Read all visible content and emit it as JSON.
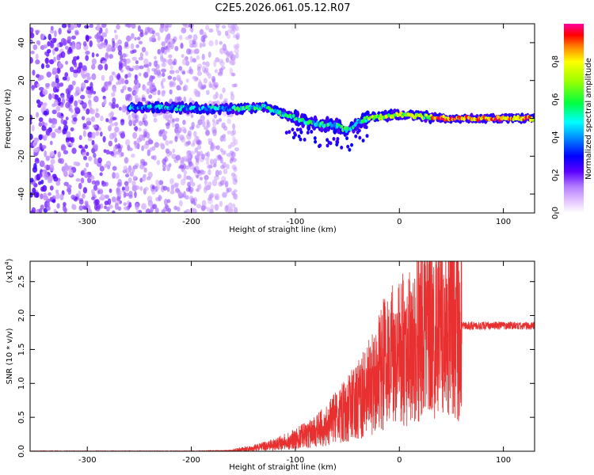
{
  "title": "C2E5.2026.061.05.12.R07",
  "chart_data": [
    {
      "type": "heatmap",
      "xlabel": "Height of straight line (km)",
      "ylabel": "Frequency (Hz)",
      "xlim": [
        -355,
        130
      ],
      "ylim": [
        -50,
        50
      ],
      "xticks": [
        -300,
        -200,
        -100,
        0,
        100
      ],
      "yticks": [
        -40,
        -20,
        0,
        20,
        40
      ],
      "colorbar": {
        "label": "Normalized spectral amplitude",
        "range": [
          0,
          1
        ],
        "ticks": [
          0.0,
          0.2,
          0.4,
          0.6,
          0.8
        ]
      },
      "ridge": {
        "x": [
          -260,
          -200,
          -160,
          -130,
          -110,
          -90,
          -75,
          -60,
          -50,
          -40,
          -30,
          -15,
          0,
          20,
          50,
          80,
          130
        ],
        "freq": [
          6,
          5.5,
          5,
          6,
          2,
          -2,
          -3,
          -4,
          -6,
          -2,
          0,
          1,
          2,
          1,
          0,
          0,
          0
        ]
      },
      "noise_region_x": [
        -355,
        -155
      ]
    },
    {
      "type": "line",
      "xlabel": "Height of straight line (km)",
      "ylabel": "SNR (10 * v/v)",
      "yscale_label": "(x10^4)",
      "xlim": [
        -355,
        130
      ],
      "ylim": [
        0,
        2.8
      ],
      "xticks": [
        -300,
        -200,
        -100,
        0,
        100
      ],
      "yticks": [
        0.0,
        0.5,
        1.0,
        1.5,
        2.0,
        2.5
      ],
      "series": [
        {
          "name": "SNR",
          "color": "#e83030",
          "x": [
            -355,
            -300,
            -250,
            -200,
            -160,
            -140,
            -120,
            -100,
            -80,
            -60,
            -40,
            -25,
            -15,
            0,
            10,
            20,
            30,
            40,
            50,
            60,
            80,
            100,
            130
          ],
          "y": [
            0.0,
            0.0,
            0.0,
            0.0,
            0.01,
            0.04,
            0.1,
            0.18,
            0.3,
            0.5,
            0.75,
            1.0,
            1.3,
            1.45,
            1.6,
            1.75,
            1.85,
            1.9,
            1.8,
            1.85,
            1.85,
            1.85,
            1.85
          ]
        }
      ]
    }
  ]
}
